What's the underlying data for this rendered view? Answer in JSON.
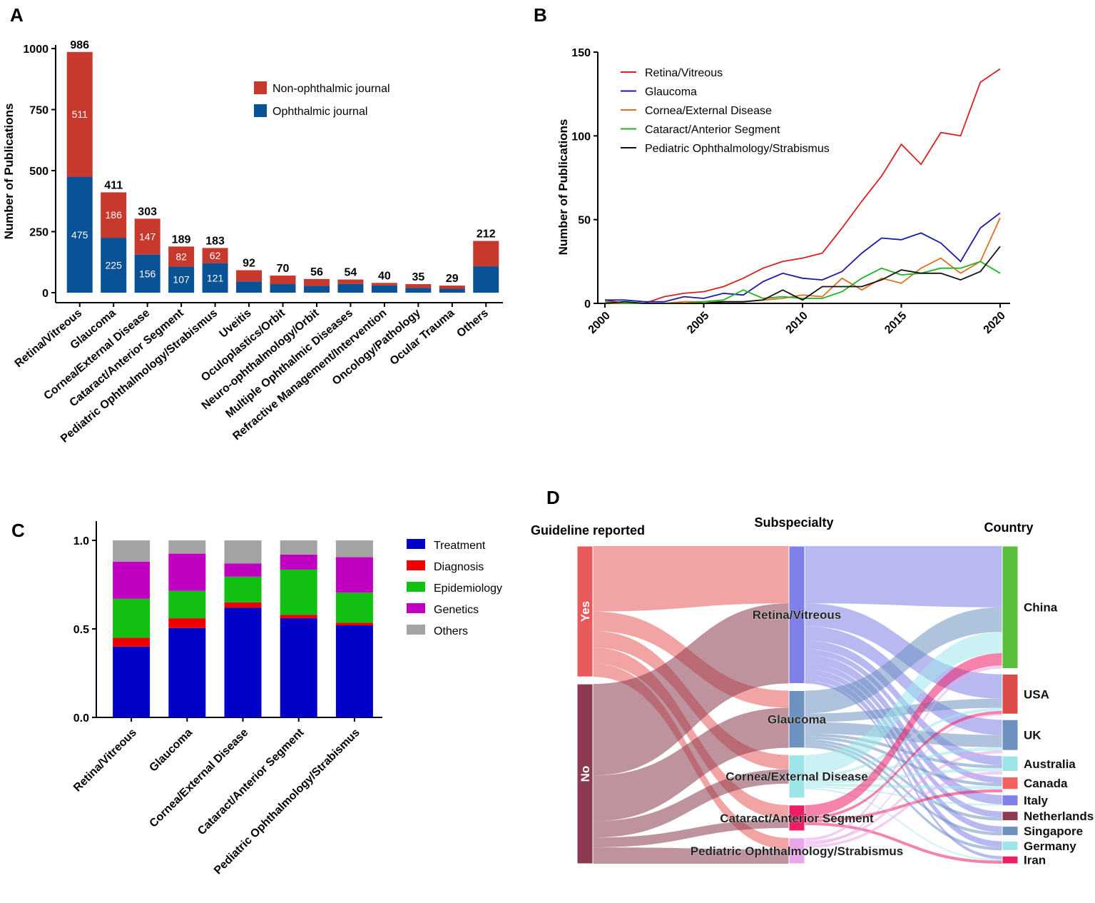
{
  "chart_data": [
    {
      "panel": "A",
      "type": "bar",
      "stacked": true,
      "ylabel": "Number of Publications",
      "ylim": [
        0,
        1000
      ],
      "yticks": [
        0,
        250,
        500,
        750,
        1000
      ],
      "legend_position": "top-right",
      "categories": [
        "Retina/Vitreous",
        "Glaucoma",
        "Cornea/External Disease",
        "Cataract/Anterior Segment",
        "Pediatric Ophthalmology/Strabismus",
        "Uveitis",
        "Oculoplastics/Orbit",
        "Neuro-ophthalmology/Orbit",
        "Multiple Ophthalmic Diseases",
        "Refractive Management/Intervention",
        "Oncology/Pathology",
        "Ocular Trauma",
        "Others"
      ],
      "totals": [
        986,
        411,
        303,
        189,
        183,
        92,
        70,
        56,
        54,
        40,
        35,
        29,
        212
      ],
      "series": [
        {
          "name": "Ophthalmic journal",
          "color": "#0a5296",
          "values": [
            475,
            225,
            156,
            107,
            121,
            46,
            35,
            28,
            36,
            30,
            20,
            16,
            108
          ],
          "labels": [
            "475",
            "225",
            "156",
            "107",
            "121",
            "",
            "",
            "",
            "",
            "",
            "",
            "",
            ""
          ]
        },
        {
          "name": "Non-ophthalmic journal",
          "color": "#c8392d",
          "values": [
            511,
            186,
            147,
            82,
            62,
            46,
            35,
            28,
            18,
            10,
            15,
            13,
            104
          ],
          "labels": [
            "511",
            "186",
            "147",
            "82",
            "62",
            "",
            "",
            "",
            "",
            "",
            "",
            "",
            ""
          ]
        }
      ]
    },
    {
      "panel": "B",
      "type": "line",
      "ylabel": "Number of Publications",
      "ylim": [
        0,
        150
      ],
      "yticks": [
        0,
        50,
        100,
        150
      ],
      "xlim": [
        2000,
        2020
      ],
      "xticks": [
        2000,
        2005,
        2010,
        2015,
        2020
      ],
      "legend_position": "top-left",
      "x": [
        2000,
        2001,
        2002,
        2003,
        2004,
        2005,
        2006,
        2007,
        2008,
        2009,
        2010,
        2011,
        2012,
        2013,
        2014,
        2015,
        2016,
        2017,
        2018,
        2019,
        2020
      ],
      "series": [
        {
          "name": "Retina/Vitreous",
          "color": "#d92020",
          "values": [
            2,
            0,
            0,
            4,
            6,
            7,
            10,
            15,
            21,
            25,
            27,
            30,
            45,
            61,
            76,
            95,
            83,
            102,
            100,
            132,
            140
          ]
        },
        {
          "name": "Glaucoma",
          "color": "#1a1aa6",
          "values": [
            2,
            2,
            1,
            1,
            4,
            3,
            6,
            5,
            13,
            18,
            15,
            14,
            19,
            30,
            39,
            38,
            42,
            36,
            25,
            45,
            54
          ]
        },
        {
          "name": "Cornea/External Disease",
          "color": "#e07020",
          "values": [
            0,
            0,
            0,
            0,
            1,
            1,
            1,
            1,
            2,
            3,
            5,
            4,
            15,
            8,
            15,
            12,
            21,
            27,
            18,
            25,
            51
          ]
        },
        {
          "name": "Cataract/Anterior Segment",
          "color": "#1db51d",
          "values": [
            1,
            0,
            0,
            0,
            0,
            1,
            2,
            8,
            3,
            4,
            3,
            3,
            7,
            15,
            21,
            17,
            18,
            21,
            21,
            25,
            18
          ]
        },
        {
          "name": "Pediatric Ophthalmology/Strabismus",
          "color": "#111111",
          "values": [
            0,
            1,
            0,
            0,
            0,
            0,
            1,
            1,
            2,
            8,
            2,
            10,
            10,
            10,
            14,
            20,
            18,
            18,
            14,
            19,
            34
          ]
        }
      ]
    },
    {
      "panel": "C",
      "type": "bar",
      "stacked": true,
      "ylim": [
        0,
        1.0
      ],
      "yticks": [
        "0.0",
        "0.5",
        "1.0"
      ],
      "legend_position": "right",
      "categories": [
        "Retina/Vitreous",
        "Glaucoma",
        "Cornea/External Disease",
        "Cataract/Anterior Segment",
        "Pediatric Ophthalmology/Strabismus"
      ],
      "series": [
        {
          "name": "Treatment",
          "color": "#0000c8",
          "values": [
            0.4,
            0.505,
            0.62,
            0.56,
            0.52
          ]
        },
        {
          "name": "Diagnosis",
          "color": "#ee0000",
          "values": [
            0.05,
            0.055,
            0.03,
            0.02,
            0.015
          ]
        },
        {
          "name": "Epidemiology",
          "color": "#11c011",
          "values": [
            0.22,
            0.155,
            0.145,
            0.255,
            0.17
          ]
        },
        {
          "name": "Genetics",
          "color": "#c000c0",
          "values": [
            0.21,
            0.21,
            0.075,
            0.085,
            0.2
          ]
        },
        {
          "name": "Others",
          "color": "#a3a3a3",
          "values": [
            0.12,
            0.075,
            0.13,
            0.08,
            0.095
          ]
        }
      ]
    },
    {
      "panel": "D",
      "type": "sankey",
      "columns": [
        "Guideline reported",
        "Subspecialty",
        "Country"
      ],
      "nodes": [
        {
          "name": "Yes",
          "column": 0,
          "value": 40,
          "color": "#e85a5a"
        },
        {
          "name": "No",
          "column": 0,
          "value": 55,
          "color": "#8b3a4f"
        },
        {
          "name": "Retina/Vitreous",
          "column": 1,
          "value": 48,
          "color": "#7f7fe8"
        },
        {
          "name": "Glaucoma",
          "column": 1,
          "value": 20,
          "color": "#6e92bf"
        },
        {
          "name": "Cornea/External Disease",
          "column": 1,
          "value": 15,
          "color": "#9ee5ea"
        },
        {
          "name": "Cataract/Anterior Segment",
          "column": 1,
          "value": 9,
          "color": "#ee1d66"
        },
        {
          "name": "Pediatric Ophthalmology/Strabismus",
          "column": 1,
          "value": 9,
          "color": "#e9a6e9"
        },
        {
          "name": "China",
          "column": 2,
          "value": 40,
          "color": "#58bf3c"
        },
        {
          "name": "USA",
          "column": 2,
          "value": 13,
          "color": "#dd4a4a"
        },
        {
          "name": "UK",
          "column": 2,
          "value": 10,
          "color": "#6e92bf"
        },
        {
          "name": "Australia",
          "column": 2,
          "value": 5,
          "color": "#9ee5ea"
        },
        {
          "name": "Canada",
          "column": 2,
          "value": 4,
          "color": "#f46060"
        },
        {
          "name": "Italy",
          "column": 2,
          "value": 3.5,
          "color": "#7f7fe8"
        },
        {
          "name": "Netherlands",
          "column": 2,
          "value": 3,
          "color": "#8b3a4f"
        },
        {
          "name": "Singapore",
          "column": 2,
          "value": 3,
          "color": "#6e92bf"
        },
        {
          "name": "Germany",
          "column": 2,
          "value": 3,
          "color": "#9ee5ea"
        },
        {
          "name": "Iran",
          "column": 2,
          "value": 2.5,
          "color": "#ee1d66"
        }
      ],
      "links": [
        {
          "source": "Yes",
          "target": "Retina/Vitreous",
          "value": 20
        },
        {
          "source": "Yes",
          "target": "Glaucoma",
          "value": 6
        },
        {
          "source": "Yes",
          "target": "Cornea/External Disease",
          "value": 5
        },
        {
          "source": "Yes",
          "target": "Cataract/Anterior Segment",
          "value": 5
        },
        {
          "source": "Yes",
          "target": "Pediatric Ophthalmology/Strabismus",
          "value": 4
        },
        {
          "source": "No",
          "target": "Retina/Vitreous",
          "value": 28
        },
        {
          "source": "No",
          "target": "Glaucoma",
          "value": 14
        },
        {
          "source": "No",
          "target": "Cornea/External Disease",
          "value": 5
        },
        {
          "source": "No",
          "target": "Cataract/Anterior Segment",
          "value": 3
        },
        {
          "source": "No",
          "target": "Pediatric Ophthalmology/Strabismus",
          "value": 5
        },
        {
          "source": "Retina/Vitreous",
          "target": "China",
          "value": 20
        },
        {
          "source": "Retina/Vitreous",
          "target": "USA",
          "value": 8
        },
        {
          "source": "Retina/Vitreous",
          "target": "UK",
          "value": 5
        },
        {
          "source": "Retina/Vitreous",
          "target": "Australia",
          "value": 3
        },
        {
          "source": "Retina/Vitreous",
          "target": "Canada",
          "value": 2
        },
        {
          "source": "Retina/Vitreous",
          "target": "Italy",
          "value": 3
        },
        {
          "source": "Retina/Vitreous",
          "target": "Netherlands",
          "value": 2
        },
        {
          "source": "Retina/Vitreous",
          "target": "Singapore",
          "value": 2
        },
        {
          "source": "Retina/Vitreous",
          "target": "Germany",
          "value": 2
        },
        {
          "source": "Retina/Vitreous",
          "target": "Iran",
          "value": 1
        },
        {
          "source": "Glaucoma",
          "target": "China",
          "value": 8
        },
        {
          "source": "Glaucoma",
          "target": "USA",
          "value": 3
        },
        {
          "source": "Glaucoma",
          "target": "UK",
          "value": 4
        },
        {
          "source": "Glaucoma",
          "target": "Australia",
          "value": 1
        },
        {
          "source": "Glaucoma",
          "target": "Canada",
          "value": 1
        },
        {
          "source": "Glaucoma",
          "target": "Netherlands",
          "value": 1
        },
        {
          "source": "Glaucoma",
          "target": "Singapore",
          "value": 1
        },
        {
          "source": "Glaucoma",
          "target": "Germany",
          "value": 1
        },
        {
          "source": "Cornea/External Disease",
          "target": "China",
          "value": 7
        },
        {
          "source": "Cornea/External Disease",
          "target": "USA",
          "value": 1
        },
        {
          "source": "Cornea/External Disease",
          "target": "UK",
          "value": 1
        },
        {
          "source": "Cornea/External Disease",
          "target": "Australia",
          "value": 1
        },
        {
          "source": "Cornea/External Disease",
          "target": "Canada",
          "value": 1
        },
        {
          "source": "Cornea/External Disease",
          "target": "Italy",
          "value": 0.5
        },
        {
          "source": "Cornea/External Disease",
          "target": "Iran",
          "value": 0.5
        },
        {
          "source": "Cataract/Anterior Segment",
          "target": "China",
          "value": 4
        },
        {
          "source": "Cataract/Anterior Segment",
          "target": "USA",
          "value": 1
        },
        {
          "source": "Cataract/Anterior Segment",
          "target": "Canada",
          "value": 1
        },
        {
          "source": "Cataract/Anterior Segment",
          "target": "Iran",
          "value": 1
        },
        {
          "source": "Pediatric Ophthalmology/Strabismus",
          "target": "China",
          "value": 1
        },
        {
          "source": "Pediatric Ophthalmology/Strabismus",
          "target": "UK",
          "value": 1
        },
        {
          "source": "Pediatric Ophthalmology/Strabismus",
          "target": "USA",
          "value": 0.5
        },
        {
          "source": "Pediatric Ophthalmology/Strabismus",
          "target": "Australia",
          "value": 1
        }
      ]
    }
  ]
}
